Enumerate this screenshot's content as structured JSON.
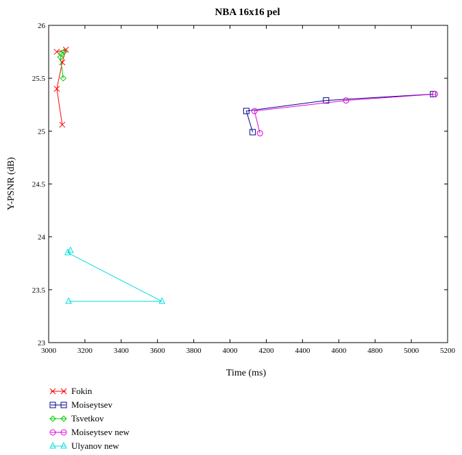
{
  "chart_data": {
    "type": "line",
    "title": "NBA 16x16 pel",
    "xlabel": "Time (ms)",
    "ylabel": "Y-PSNR (dB)",
    "xlim": [
      3000,
      5200
    ],
    "ylim": [
      23,
      26
    ],
    "xticks": [
      "3000",
      "3200",
      "3400",
      "3600",
      "3800",
      "4000",
      "4200",
      "4400",
      "4600",
      "4800",
      "5000",
      "5200"
    ],
    "yticks": [
      "23",
      "23.5",
      "24",
      "24.5",
      "25",
      "25.5",
      "26"
    ],
    "grid": false,
    "legend_position": "below",
    "series": [
      {
        "name": "Fokin",
        "color": "#ff0000",
        "marker": "x",
        "x": [
          3075,
          3045,
          3075,
          3095,
          3045
        ],
        "y": [
          25.06,
          25.4,
          25.65,
          25.77,
          25.75
        ]
      },
      {
        "name": "Moiseytsev",
        "color": "#00008b",
        "marker": "square",
        "x": [
          4125,
          4090,
          4530,
          5120
        ],
        "y": [
          24.99,
          25.19,
          25.29,
          25.35
        ]
      },
      {
        "name": "Tsvetkov",
        "color": "#00cc00",
        "marker": "diamond",
        "x": [
          3080,
          3065,
          3070,
          3085
        ],
        "y": [
          25.5,
          25.7,
          25.73,
          25.75
        ]
      },
      {
        "name": "Moiseytsev new",
        "color": "#dd00dd",
        "marker": "circle",
        "x": [
          4165,
          4135,
          4640,
          5130
        ],
        "y": [
          24.98,
          25.19,
          25.29,
          25.35
        ]
      },
      {
        "name": "Ulyanov new",
        "color": "#00dddd",
        "marker": "triangle",
        "x": [
          3110,
          3625,
          3105,
          3120
        ],
        "y": [
          23.39,
          23.39,
          23.85,
          23.87
        ]
      }
    ]
  }
}
